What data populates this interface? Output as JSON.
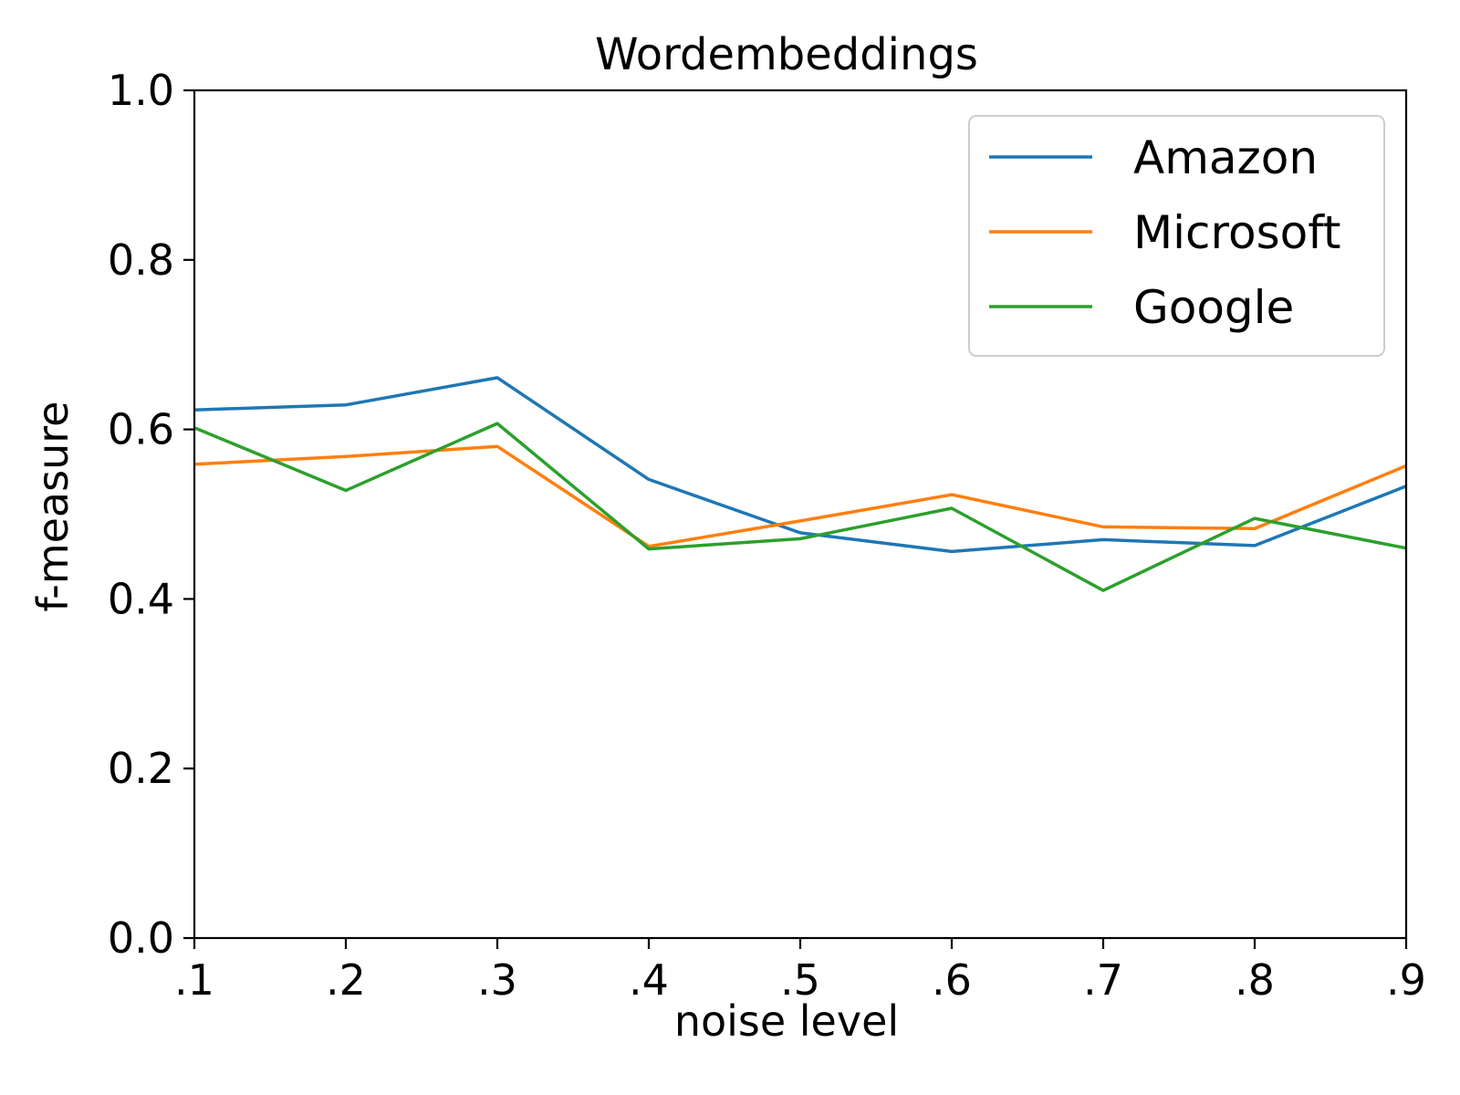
{
  "chart_data": {
    "type": "line",
    "title": "Wordembeddings",
    "xlabel": "noise level",
    "ylabel": "f-measure",
    "categories": [
      ".1",
      ".2",
      ".3",
      ".4",
      ".5",
      ".6",
      ".7",
      ".8",
      ".9"
    ],
    "ylim": [
      0.0,
      1.0
    ],
    "yticks": [
      "0.0",
      "0.2",
      "0.4",
      "0.6",
      "0.8",
      "1.0"
    ],
    "grid": false,
    "legend_position": "top-right",
    "series": [
      {
        "name": "Amazon",
        "color": "#1f77b4",
        "values": [
          0.623,
          0.629,
          0.661,
          0.541,
          0.478,
          0.456,
          0.47,
          0.463,
          0.533
        ]
      },
      {
        "name": "Microsoft",
        "color": "#ff7f0e",
        "values": [
          0.559,
          0.568,
          0.58,
          0.462,
          0.492,
          0.523,
          0.485,
          0.483,
          0.557
        ]
      },
      {
        "name": "Google",
        "color": "#2ca02c",
        "values": [
          0.602,
          0.528,
          0.607,
          0.459,
          0.471,
          0.507,
          0.41,
          0.495,
          0.46
        ]
      }
    ]
  }
}
